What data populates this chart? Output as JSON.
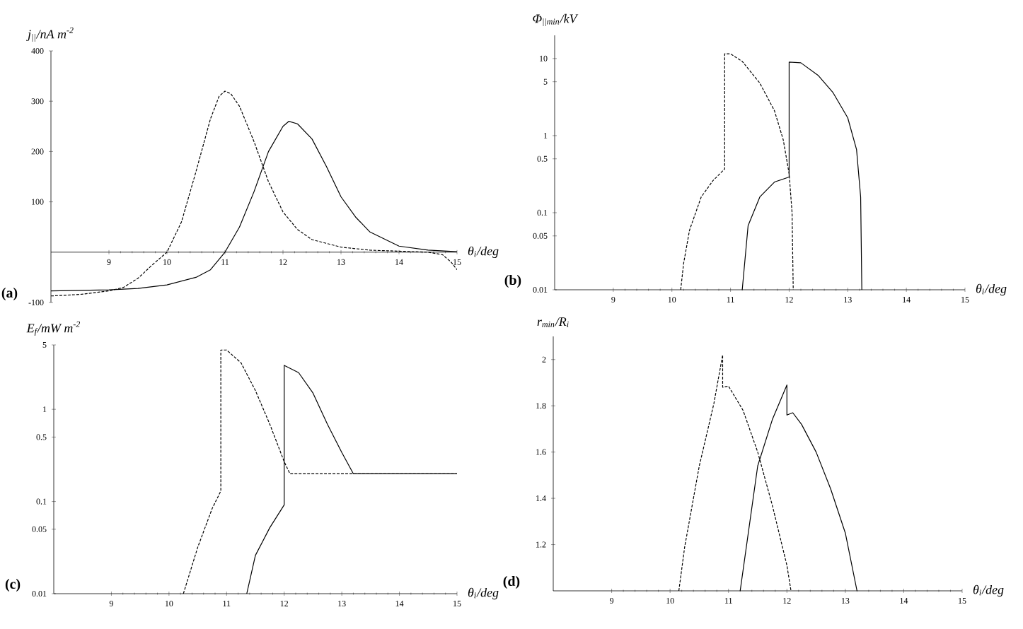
{
  "chart_data": [
    {
      "type": "line",
      "title": "(a)",
      "xlabel": "θ$_{i}$/deg",
      "ylabel": "j$_{||}$/nA m$^{-2}$",
      "xlim": [
        8,
        15
      ],
      "ylim": [
        -100,
        400
      ],
      "xticks": [
        9,
        10,
        11,
        12,
        13,
        14,
        15
      ],
      "yticks": [
        -100,
        100,
        200,
        300,
        400
      ],
      "series": [
        {
          "line_style": "dashed",
          "color": "#000000",
          "x": [
            8,
            8.5,
            9,
            9.25,
            9.5,
            9.75,
            10,
            10.25,
            10.5,
            10.75,
            10.9,
            11,
            11.1,
            11.25,
            11.5,
            11.75,
            12,
            12.25,
            12.5,
            13,
            13.5,
            14,
            14.5,
            14.75,
            14.9,
            15
          ],
          "values": [
            -87,
            -84,
            -77,
            -70,
            -52,
            -25,
            0,
            60,
            160,
            265,
            310,
            320,
            315,
            290,
            220,
            140,
            80,
            45,
            25,
            10,
            4,
            2,
            0,
            -5,
            -20,
            -35
          ]
        },
        {
          "line_style": "solid",
          "color": "#000000",
          "x": [
            8,
            9,
            9.5,
            10,
            10.5,
            10.75,
            11,
            11.25,
            11.5,
            11.75,
            12,
            12.1,
            12.25,
            12.5,
            12.75,
            13,
            13.25,
            13.5,
            14,
            14.5,
            15
          ],
          "values": [
            -77,
            -75,
            -72,
            -65,
            -50,
            -35,
            0,
            50,
            120,
            200,
            250,
            260,
            255,
            225,
            170,
            110,
            70,
            40,
            12,
            4,
            1
          ]
        }
      ]
    },
    {
      "type": "line",
      "title": "(b)",
      "xlabel": "θ$_{i}$/deg",
      "ylabel": "Φ$_{||min}$/kV",
      "log": "y",
      "xlim": [
        8,
        15
      ],
      "ylim": [
        0.01,
        20
      ],
      "xticks": [
        9,
        10,
        11,
        12,
        13,
        14,
        15
      ],
      "yticks": [
        0.01,
        0.05,
        0.1,
        0.5,
        1,
        5,
        10
      ],
      "series": [
        {
          "line_style": "dashed",
          "color": "#000000",
          "x": [
            10.15,
            10.2,
            10.3,
            10.5,
            10.7,
            10.9,
            10.9,
            11,
            11.2,
            11.5,
            11.75,
            11.9,
            12,
            12.05,
            12.07
          ],
          "values": [
            0.01,
            0.022,
            0.059,
            0.16,
            0.26,
            0.37,
            11.5,
            11.5,
            9.2,
            4.8,
            2.1,
            0.88,
            0.32,
            0.1,
            0.01
          ]
        },
        {
          "line_style": "solid",
          "color": "#000000",
          "x": [
            11.2,
            11.3,
            11.5,
            11.75,
            12,
            12,
            12.2,
            12.5,
            12.75,
            13,
            13.15,
            13.22,
            13.24
          ],
          "values": [
            0.01,
            0.068,
            0.16,
            0.25,
            0.29,
            9,
            8.8,
            6,
            3.6,
            1.7,
            0.66,
            0.16,
            0.01
          ]
        }
      ]
    },
    {
      "type": "line",
      "title": "(c)",
      "xlabel": "θ$_{i}$/deg",
      "ylabel": "E$_{f}$/mW m$^{-2}$",
      "log": "y",
      "xlim": [
        8,
        15
      ],
      "ylim": [
        0.01,
        5
      ],
      "xticks": [
        9,
        10,
        11,
        12,
        13,
        14,
        15
      ],
      "yticks": [
        0.01,
        0.05,
        0.1,
        0.5,
        1,
        5
      ],
      "series": [
        {
          "line_style": "dashed",
          "color": "#000000",
          "x": [
            10.25,
            10.5,
            10.75,
            10.9,
            10.9,
            11,
            11.25,
            11.5,
            11.75,
            12,
            12.1,
            15
          ],
          "values": [
            0.01,
            0.032,
            0.084,
            0.13,
            4.4,
            4.4,
            3.2,
            1.6,
            0.69,
            0.27,
            0.2,
            0.2
          ]
        },
        {
          "line_style": "solid",
          "color": "#000000",
          "x": [
            11.35,
            11.5,
            11.75,
            12,
            12,
            12.25,
            12.5,
            12.75,
            13,
            13.2,
            15
          ],
          "values": [
            0.01,
            0.026,
            0.052,
            0.092,
            3,
            2.5,
            1.5,
            0.69,
            0.34,
            0.2,
            0.2
          ]
        }
      ]
    },
    {
      "type": "line",
      "title": "(d)",
      "xlabel": "θ$_{i}$/deg",
      "ylabel": "r$_{min}$/R$_{i}$",
      "xlim": [
        8,
        15
      ],
      "ylim": [
        1,
        2.1
      ],
      "xticks": [
        9,
        10,
        11,
        12,
        13,
        14,
        15
      ],
      "yticks": [
        1.2,
        1.4,
        1.6,
        1.8,
        2
      ],
      "series": [
        {
          "line_style": "dashed",
          "color": "#000000",
          "x": [
            10.15,
            10.25,
            10.5,
            10.75,
            10.9,
            10.9,
            11,
            11.25,
            11.5,
            11.75,
            12,
            12.07
          ],
          "values": [
            1,
            1.19,
            1.54,
            1.81,
            2.02,
            1.88,
            1.885,
            1.78,
            1.6,
            1.37,
            1.11,
            1
          ]
        },
        {
          "line_style": "solid",
          "color": "#000000",
          "x": [
            11.2,
            11.5,
            11.75,
            12,
            12,
            12.1,
            12.25,
            12.5,
            12.75,
            13,
            13.2
          ],
          "values": [
            1,
            1.54,
            1.74,
            1.89,
            1.76,
            1.77,
            1.72,
            1.6,
            1.44,
            1.25,
            1
          ]
        }
      ]
    }
  ]
}
